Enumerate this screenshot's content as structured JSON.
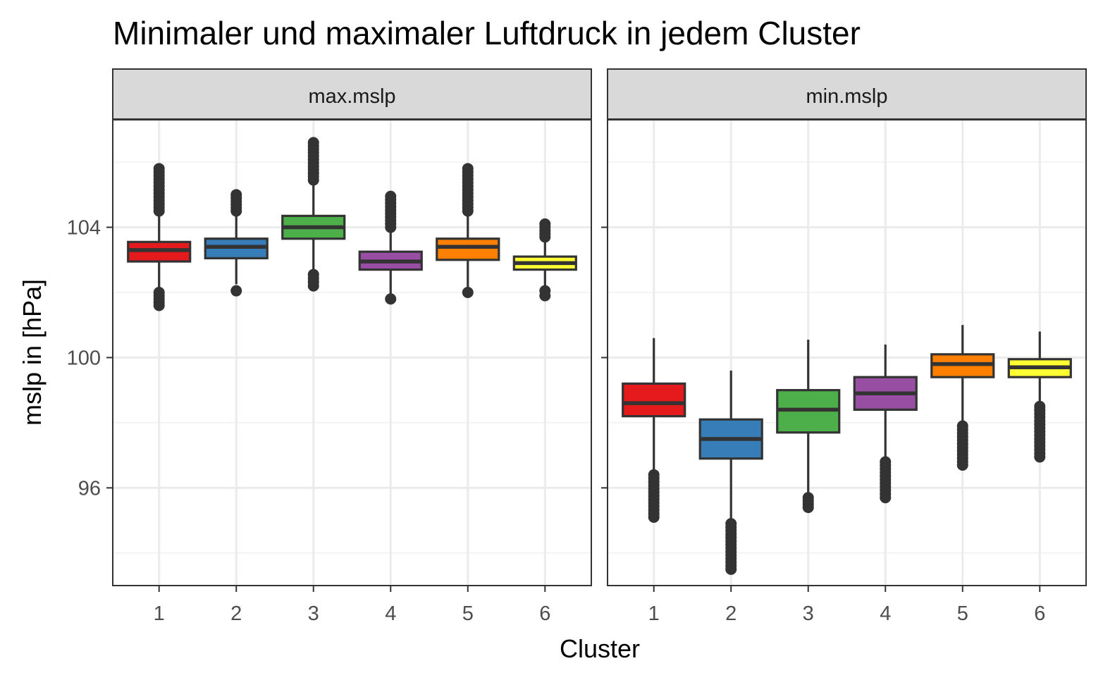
{
  "title": "Minimaler und maximaler Luftdruck in jedem Cluster",
  "chart_data": {
    "type": "boxplot",
    "title": "Minimaler und maximaler Luftdruck in jedem Cluster",
    "xlabel": "Cluster",
    "ylabel": "mslp in [hPa]",
    "ylim": [
      93.0,
      107.3
    ],
    "yticks": [
      96,
      100,
      104
    ],
    "y_minor_ticks": [
      94,
      98,
      102,
      106
    ],
    "categories": [
      "1",
      "2",
      "3",
      "4",
      "5",
      "6"
    ],
    "grid": true,
    "legend": "none",
    "colors": [
      "#e41a1c",
      "#377eb8",
      "#4daf4a",
      "#984ea3",
      "#ff7f00",
      "#ffff33"
    ],
    "panels": [
      {
        "name": "max.mslp",
        "boxes": [
          {
            "cluster": "1",
            "q1": 102.95,
            "median": 103.3,
            "q3": 103.55,
            "whisker_low": 102.05,
            "whisker_high": 104.45,
            "outliers_low": [
              101.6,
              102.0
            ],
            "outliers_high": [
              104.5,
              105.8
            ]
          },
          {
            "cluster": "2",
            "q1": 103.05,
            "median": 103.4,
            "q3": 103.65,
            "whisker_low": 102.25,
            "whisker_high": 104.45,
            "outliers_low": [
              102.05
            ],
            "outliers_high": [
              104.5,
              105.0
            ]
          },
          {
            "cluster": "3",
            "q1": 103.65,
            "median": 104.0,
            "q3": 104.35,
            "whisker_low": 102.6,
            "whisker_high": 105.4,
            "outliers_low": [
              102.2,
              102.55
            ],
            "outliers_high": [
              105.45,
              106.6
            ]
          },
          {
            "cluster": "4",
            "q1": 102.7,
            "median": 102.95,
            "q3": 103.25,
            "whisker_low": 101.95,
            "whisker_high": 103.9,
            "outliers_low": [
              101.8
            ],
            "outliers_high": [
              104.0,
              104.95
            ]
          },
          {
            "cluster": "5",
            "q1": 103.0,
            "median": 103.4,
            "q3": 103.65,
            "whisker_low": 102.1,
            "whisker_high": 104.45,
            "outliers_low": [
              102.0
            ],
            "outliers_high": [
              104.5,
              105.8
            ]
          },
          {
            "cluster": "6",
            "q1": 102.7,
            "median": 102.9,
            "q3": 103.1,
            "whisker_low": 102.05,
            "whisker_high": 103.65,
            "outliers_low": [
              101.9,
              102.05
            ],
            "outliers_high": [
              103.7,
              104.1
            ]
          }
        ]
      },
      {
        "name": "min.mslp",
        "boxes": [
          {
            "cluster": "1",
            "q1": 98.2,
            "median": 98.6,
            "q3": 99.2,
            "whisker_low": 96.5,
            "whisker_high": 100.6,
            "outliers_low": [
              95.1,
              96.4
            ],
            "outliers_high": []
          },
          {
            "cluster": "2",
            "q1": 96.9,
            "median": 97.5,
            "q3": 98.1,
            "whisker_low": 95.0,
            "whisker_high": 99.6,
            "outliers_low": [
              93.5,
              94.9
            ],
            "outliers_high": []
          },
          {
            "cluster": "3",
            "q1": 97.7,
            "median": 98.4,
            "q3": 99.0,
            "whisker_low": 95.75,
            "whisker_high": 100.55,
            "outliers_low": [
              95.4,
              95.7
            ],
            "outliers_high": []
          },
          {
            "cluster": "4",
            "q1": 98.4,
            "median": 98.9,
            "q3": 99.4,
            "whisker_low": 96.9,
            "whisker_high": 100.4,
            "outliers_low": [
              95.7,
              96.8
            ],
            "outliers_high": []
          },
          {
            "cluster": "5",
            "q1": 99.4,
            "median": 99.8,
            "q3": 100.1,
            "whisker_low": 98.0,
            "whisker_high": 101.0,
            "outliers_low": [
              96.7,
              97.4,
              97.9
            ],
            "outliers_high": []
          },
          {
            "cluster": "6",
            "q1": 99.4,
            "median": 99.7,
            "q3": 99.95,
            "whisker_low": 98.6,
            "whisker_high": 100.8,
            "outliers_low": [
              96.95,
              97.6,
              98.5
            ],
            "outliers_high": []
          }
        ]
      }
    ]
  }
}
